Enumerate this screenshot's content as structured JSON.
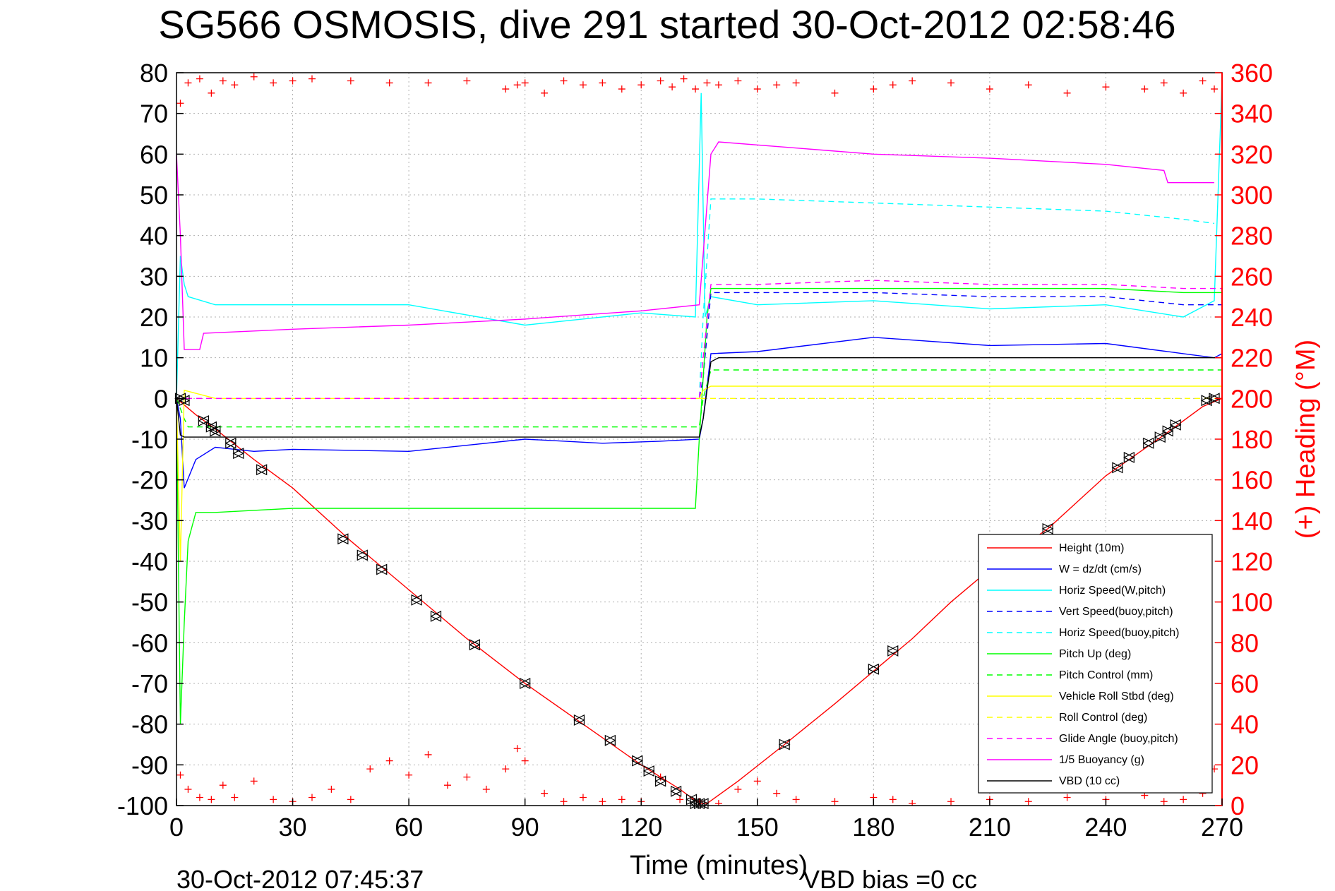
{
  "chart_data": {
    "type": "line",
    "title": "SG566 OSMOSIS, dive 291 started 30-Oct-2012 02:58:46",
    "xlabel": "Time (minutes)",
    "ylabel_right": "(+) Heading (°M)",
    "xlim": [
      0,
      270
    ],
    "ylim": [
      -100,
      80
    ],
    "ylim_right": [
      0,
      360
    ],
    "x_ticks": [
      "0",
      "30",
      "60",
      "90",
      "120",
      "150",
      "180",
      "210",
      "240",
      "270"
    ],
    "y_ticks": [
      "80",
      "70",
      "60",
      "50",
      "40",
      "30",
      "20",
      "10",
      "0",
      "-10",
      "-20",
      "-30",
      "-40",
      "-50",
      "-60",
      "-70",
      "-80",
      "-90",
      "-100"
    ],
    "y_right_ticks": [
      "360",
      "340",
      "320",
      "300",
      "280",
      "260",
      "240",
      "220",
      "200",
      "180",
      "160",
      "140",
      "120",
      "100",
      "80",
      "60",
      "40",
      "20",
      "0"
    ],
    "grid": true,
    "legend_position": "bottom-right",
    "footer_left": "30-Oct-2012 07:45:37",
    "footer_right": "VBD bias =0 cc",
    "colors": {
      "red": "#ff0000",
      "blue": "#0000ff",
      "cyan": "#00ffff",
      "green": "#00ff00",
      "yellow": "#ffff00",
      "magenta": "#ff00ff",
      "black": "#000000"
    },
    "series": [
      {
        "name": "Height (10m)",
        "color": "#ff0000",
        "dash": false,
        "x": [
          0,
          5,
          10,
          20,
          30,
          45,
          60,
          75,
          90,
          105,
          120,
          130,
          135,
          137,
          145,
          157,
          170,
          180,
          190,
          200,
          210,
          225,
          240,
          255,
          265,
          270
        ],
        "y": [
          0,
          -4,
          -7.5,
          -15,
          -22,
          -35,
          -47,
          -59,
          -70,
          -80,
          -90,
          -96,
          -99.5,
          -99.5,
          -94,
          -85,
          -75,
          -67,
          -59,
          -50,
          -42,
          -32,
          -19,
          -9,
          -2,
          0
        ]
      },
      {
        "name": "W = dz/dt (cm/s)",
        "color": "#0000ff",
        "dash": false,
        "x": [
          0,
          1,
          2,
          5,
          10,
          20,
          30,
          60,
          90,
          110,
          125,
          135,
          136,
          138,
          150,
          180,
          210,
          240,
          260,
          268,
          270
        ],
        "y": [
          0,
          -5,
          -22,
          -15,
          -12,
          -13,
          -12.5,
          -13,
          -10,
          -11,
          -10.5,
          -10,
          -5,
          11,
          11.5,
          15,
          13,
          13.5,
          11,
          10,
          11
        ]
      },
      {
        "name": "Horiz Speed(W,pitch)",
        "color": "#00ffff",
        "dash": false,
        "x": [
          0,
          1,
          2,
          3,
          10,
          30,
          60,
          90,
          120,
          134,
          135.5,
          136.5,
          138,
          150,
          180,
          210,
          240,
          260,
          268,
          270
        ],
        "y": [
          0,
          35,
          28,
          25,
          23,
          23,
          23,
          18,
          21,
          20,
          75,
          20,
          25,
          23,
          24,
          22,
          23,
          20,
          24,
          78
        ]
      },
      {
        "name": "Vert Speed(buoy,pitch)",
        "color": "#0000ff",
        "dash": true,
        "x": [
          0,
          135,
          136,
          138,
          150,
          180,
          210,
          240,
          260,
          270
        ],
        "y": [
          0,
          0,
          5,
          26,
          26,
          26,
          25,
          25,
          23,
          23
        ]
      },
      {
        "name": "Horiz Speed(buoy,pitch)",
        "color": "#00ffff",
        "dash": true,
        "x": [
          0,
          135,
          136,
          138,
          150,
          180,
          210,
          240,
          260,
          268
        ],
        "y": [
          0,
          0,
          20,
          49,
          49,
          48,
          47,
          46,
          44,
          43
        ]
      },
      {
        "name": "Pitch Up (deg)",
        "color": "#00ff00",
        "dash": false,
        "x": [
          0,
          1,
          2,
          3,
          5,
          10,
          30,
          60,
          90,
          120,
          134,
          135,
          137,
          138,
          150,
          180,
          210,
          240,
          260,
          270
        ],
        "y": [
          0,
          -80,
          -55,
          -35,
          -28,
          -28,
          -27,
          -27,
          -27,
          -27,
          -27,
          -10,
          20,
          27,
          27,
          27,
          27,
          27,
          26,
          26
        ]
      },
      {
        "name": "Pitch Control (mm)",
        "color": "#00ff00",
        "dash": true,
        "x": [
          0,
          2,
          3,
          135,
          136,
          138,
          270
        ],
        "y": [
          0,
          -5,
          -7,
          -7,
          0,
          7,
          7
        ]
      },
      {
        "name": "Vehicle Roll Stbd (deg)",
        "color": "#ffff00",
        "dash": false,
        "x": [
          0,
          1,
          2,
          10,
          60,
          120,
          135,
          136,
          138,
          270
        ],
        "y": [
          0,
          -40,
          2,
          0,
          0,
          0,
          0,
          2,
          3,
          3
        ]
      },
      {
        "name": "Roll Control (deg)",
        "color": "#ffff00",
        "dash": true,
        "x": [
          0,
          136,
          138,
          270
        ],
        "y": [
          0,
          0,
          0,
          0
        ]
      },
      {
        "name": "Glide Angle (buoy,pitch)",
        "color": "#ff00ff",
        "dash": true,
        "x": [
          0,
          135,
          136,
          138,
          150,
          180,
          210,
          240,
          260,
          270
        ],
        "y": [
          0,
          0,
          10,
          28,
          28,
          29,
          28,
          28,
          27,
          27
        ]
      },
      {
        "name": "1/5 Buoyancy (g)",
        "color": "#ff00ff",
        "dash": false,
        "x": [
          0,
          1,
          2,
          6,
          7,
          30,
          60,
          90,
          120,
          135,
          138,
          140,
          180,
          210,
          240,
          255,
          256,
          268
        ],
        "y": [
          60,
          40,
          12,
          12,
          16,
          17,
          18,
          19.5,
          21.5,
          23,
          60,
          63,
          60,
          59,
          57.5,
          56,
          53,
          53
        ]
      },
      {
        "name": "VBD (10 cc)",
        "color": "#000000",
        "dash": false,
        "x": [
          0,
          1,
          2,
          135,
          136,
          138,
          140,
          270
        ],
        "y": [
          0,
          -9,
          -9.5,
          -9.5,
          -5,
          9,
          10,
          10
        ]
      }
    ],
    "heading_series": {
      "color": "#ff0000",
      "marker": "+",
      "axis": "right",
      "x": [
        1,
        3,
        6,
        9,
        12,
        15,
        20,
        25,
        30,
        35,
        45,
        55,
        65,
        75,
        85,
        88,
        90,
        95,
        100,
        105,
        110,
        115,
        120,
        125,
        128,
        131,
        134,
        137,
        140,
        145,
        150,
        155,
        160,
        170,
        180,
        185,
        190,
        200,
        210,
        220,
        230,
        240,
        250,
        255,
        260,
        265,
        268
      ],
      "y": [
        345,
        355,
        357,
        350,
        356,
        354,
        358,
        355,
        356,
        357,
        356,
        355,
        355,
        356,
        352,
        354,
        355,
        350,
        356,
        354,
        355,
        352,
        354,
        356,
        353,
        357,
        352,
        355,
        354,
        356,
        352,
        354,
        355,
        350,
        352,
        354,
        356,
        355,
        352,
        354,
        350,
        353,
        352,
        355,
        350,
        356,
        352
      ]
    },
    "heading_series_low": {
      "x": [
        1,
        3,
        6,
        9,
        12,
        15,
        20,
        25,
        30,
        35,
        40,
        45,
        50,
        55,
        60,
        65,
        70,
        75,
        80,
        85,
        88,
        90,
        95,
        100,
        105,
        110,
        115,
        120,
        125,
        130,
        135,
        140,
        145,
        150,
        155,
        160,
        170,
        180,
        185,
        190,
        200,
        210,
        220,
        230,
        240,
        250,
        255,
        260,
        265,
        268
      ],
      "y": [
        15,
        8,
        4,
        3,
        10,
        4,
        12,
        3,
        2,
        4,
        8,
        3,
        18,
        22,
        15,
        25,
        10,
        14,
        8,
        18,
        28,
        22,
        6,
        2,
        4,
        2,
        3,
        2,
        14,
        3,
        2,
        1,
        8,
        12,
        6,
        3,
        2,
        4,
        3,
        1,
        2,
        3,
        2,
        4,
        3,
        5,
        2,
        3,
        6,
        18
      ]
    },
    "markers": {
      "color": "#000000",
      "symbol": "triangle-pair",
      "x": [
        1,
        2,
        7,
        9,
        10,
        14,
        16,
        22,
        43,
        48,
        53,
        62,
        67,
        77,
        90,
        104,
        112,
        119,
        122,
        125,
        129,
        133,
        134,
        135,
        136,
        157,
        180,
        185,
        225,
        243,
        246,
        251,
        254,
        256,
        258,
        266,
        268
      ],
      "y": [
        0,
        -0.5,
        -5.5,
        -7,
        -8,
        -11,
        -13.5,
        -17.5,
        -34.5,
        -38.5,
        -42,
        -49.5,
        -53.5,
        -60.5,
        -70,
        -79,
        -84,
        -89,
        -91.5,
        -94,
        -96.5,
        -98.5,
        -99.5,
        -99.5,
        -99.5,
        -85,
        -66.5,
        -62,
        -32,
        -17,
        -14.5,
        -11,
        -9.5,
        -8,
        -6.5,
        -0.5,
        0
      ]
    }
  }
}
